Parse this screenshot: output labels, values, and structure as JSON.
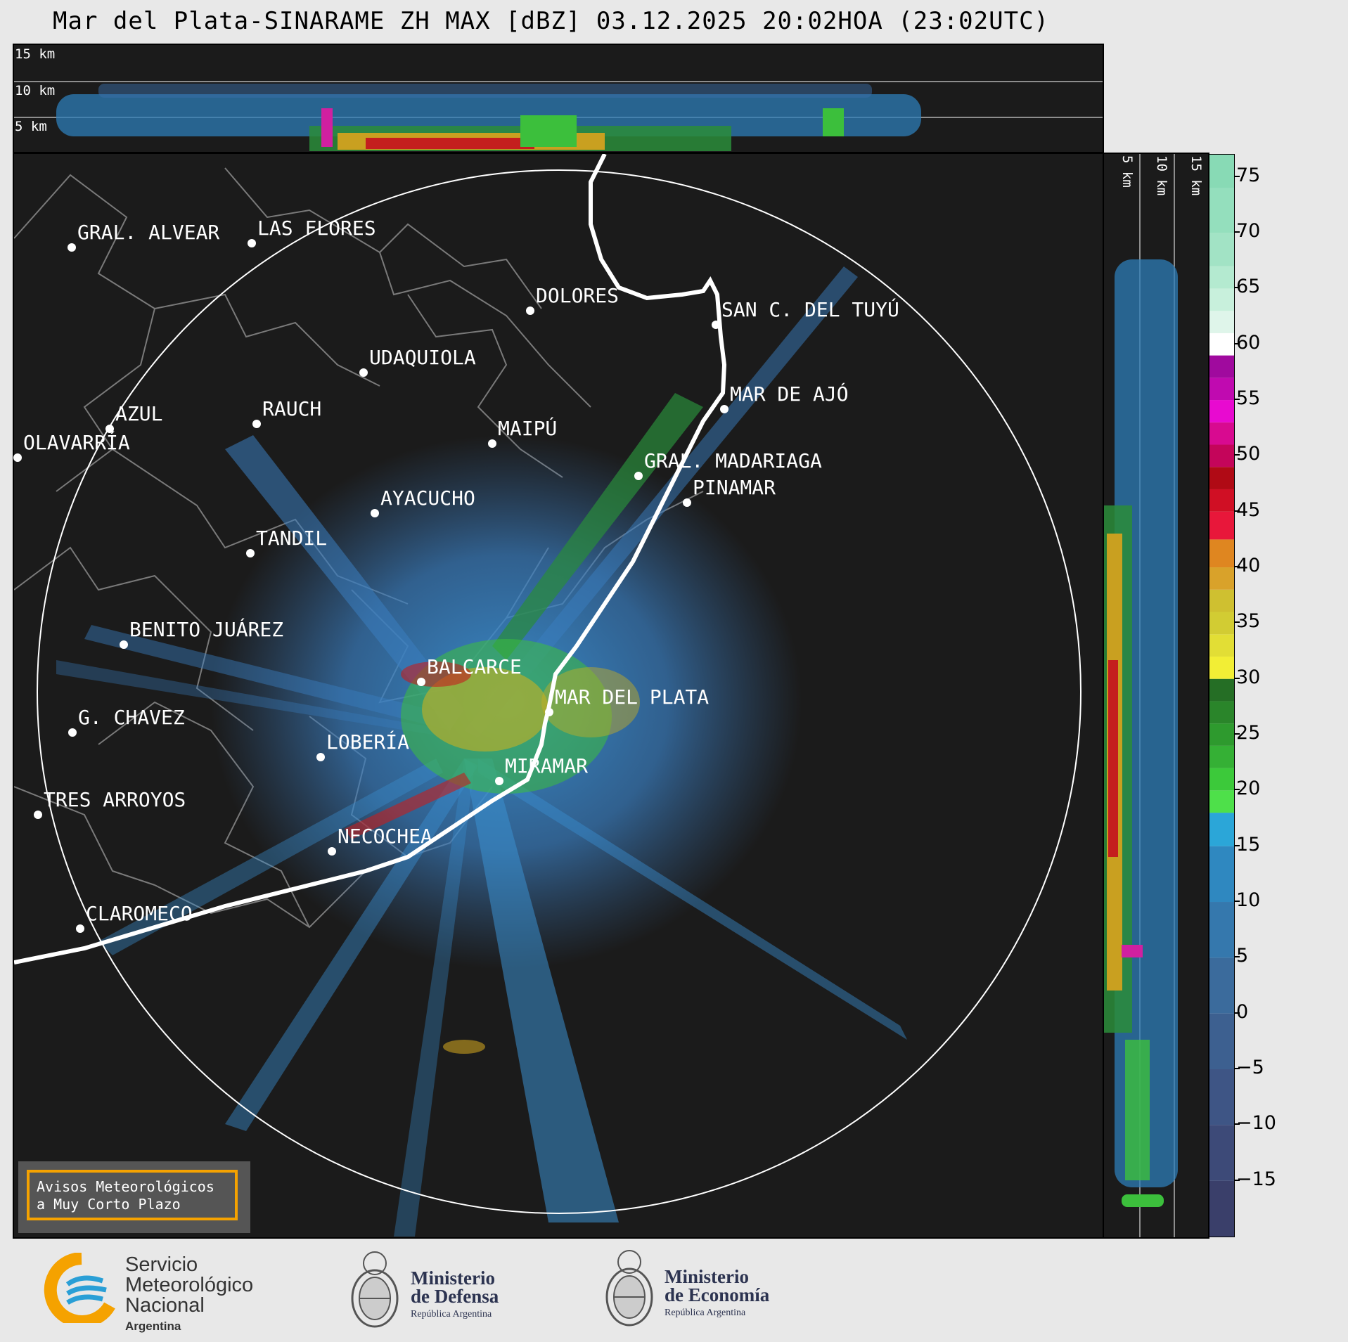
{
  "title": "Mar del Plata-SINARAME ZH MAX [dBZ] 03.12.2025 20:02HOA (23:02UTC)",
  "top_panel": {
    "labels": [
      "15 km",
      "10 km",
      "5 km"
    ]
  },
  "side_panel": {
    "labels": [
      "5 km",
      "10 km",
      "15 km"
    ]
  },
  "cities": [
    {
      "name": "GRAL. ALVEAR"
    },
    {
      "name": "LAS FLORES"
    },
    {
      "name": "DOLORES"
    },
    {
      "name": "SAN C. DEL TUYÚ"
    },
    {
      "name": "UDAQUIOLA"
    },
    {
      "name": "MAR DE AJÓ"
    },
    {
      "name": "RAUCH"
    },
    {
      "name": "AZUL"
    },
    {
      "name": "MAIPÚ"
    },
    {
      "name": "OLAVARRÍA"
    },
    {
      "name": "GRAL. MADARIAGA"
    },
    {
      "name": "PINAMAR"
    },
    {
      "name": "AYACUCHO"
    },
    {
      "name": "TANDIL"
    },
    {
      "name": "BENITO JUÁREZ"
    },
    {
      "name": "BALCARCE"
    },
    {
      "name": "MAR DEL PLATA"
    },
    {
      "name": "G. CHAVEZ"
    },
    {
      "name": "LOBERÍA"
    },
    {
      "name": "MIRAMAR"
    },
    {
      "name": "TRES ARROYOS"
    },
    {
      "name": "NECOCHEA"
    },
    {
      "name": "CLAROMECO"
    }
  ],
  "colorbar": {
    "ticks": [
      "75",
      "70",
      "65",
      "60",
      "55",
      "50",
      "45",
      "40",
      "35",
      "30",
      "25",
      "20",
      "15",
      "10",
      "5",
      "0",
      "−5",
      "−10",
      "−15"
    ],
    "range_dbz": [
      -20,
      77
    ]
  },
  "warning_box": {
    "line1": "Avisos Meteorológicos",
    "line2": "a Muy Corto Plazo"
  },
  "logos": {
    "smn": {
      "line1": "Servicio",
      "line2": "Meteorológico",
      "line3": "Nacional",
      "line4": "Argentina"
    },
    "defensa": {
      "line1": "Ministerio",
      "line2": "de Defensa",
      "line3": "República Argentina"
    },
    "economia": {
      "line1": "Ministerio",
      "line2": "de Economía",
      "line3": "República Argentina"
    }
  },
  "colors": {
    "panel_bg": "#1b1b1b",
    "smn_orange": "#f5a200",
    "smn_blue": "#2a9fd6",
    "ministry_navy": "#2c3350"
  }
}
